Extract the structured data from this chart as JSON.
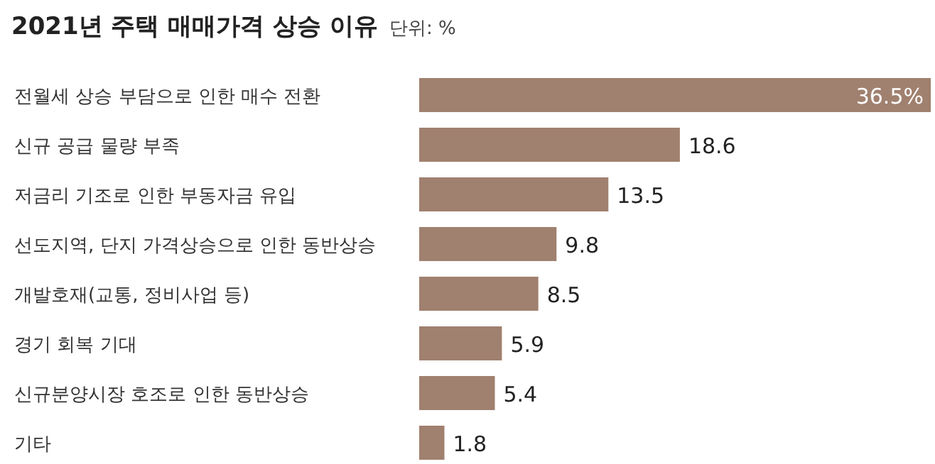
{
  "chart_data": {
    "type": "bar",
    "orientation": "horizontal",
    "title": "2021년 주택 매매가격 상승 이유",
    "subtitle": "단위: %",
    "categories": [
      "전월세 상승 부담으로 인한 매수 전환",
      "신규 공급 물량 부족",
      "저금리 기조로 인한 부동자금 유입",
      "선도지역, 단지 가격상승으로 인한 동반상승",
      "개발호재(교통, 정비사업 등)",
      "경기 회복 기대",
      "신규분양시장 호조로 인한 동반상승",
      "기타"
    ],
    "values": [
      36.5,
      18.6,
      13.5,
      9.8,
      8.5,
      5.9,
      5.4,
      1.8
    ],
    "color": "#a0806f",
    "value_labels": [
      "36.5%",
      "18.6",
      "13.5",
      "9.8",
      "8.5",
      "5.9",
      "5.4",
      "1.8"
    ]
  }
}
